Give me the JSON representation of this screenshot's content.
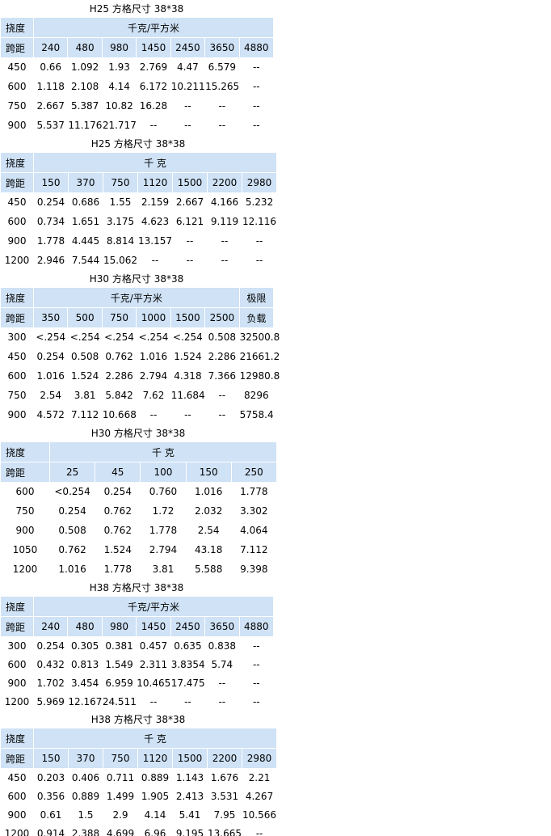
{
  "tables": [
    {
      "title": "H25 方格尺寸 38*38",
      "header1": [
        "挠度",
        "千克/平方米"
      ],
      "header2": [
        "跨距",
        "240",
        "480",
        "980",
        "1450",
        "2450",
        "3650",
        "4880"
      ],
      "rows": [
        [
          "450",
          "0.66",
          "1.092",
          "1.93",
          "2.769",
          "4.47",
          "6.579",
          "--"
        ],
        [
          "600",
          "1.118",
          "2.108",
          "4.14",
          "6.172",
          "10.211",
          "15.265",
          "--"
        ],
        [
          "750",
          "2.667",
          "5.387",
          "10.82",
          "16.28",
          "--",
          "--",
          "--"
        ],
        [
          "900",
          "5.537",
          "11.176",
          "21.717",
          "--",
          "--",
          "--",
          "--"
        ]
      ]
    },
    {
      "title": "H25 方格尺寸 38*38",
      "header1": [
        "挠度",
        "千 克"
      ],
      "header2": [
        "跨距",
        "150",
        "370",
        "750",
        "1120",
        "1500",
        "2200",
        "2980"
      ],
      "rows": [
        [
          "450",
          "0.254",
          "0.686",
          "1.55",
          "2.159",
          "2.667",
          "4.166",
          "5.232"
        ],
        [
          "600",
          "0.734",
          "1.651",
          "3.175",
          "4.623",
          "6.121",
          "9.119",
          "12.116"
        ],
        [
          "900",
          "1.778",
          "4.445",
          "8.814",
          "13.157",
          "--",
          "--",
          "--"
        ],
        [
          "1200",
          "2.946",
          "7.544",
          "15.062",
          "--",
          "--",
          "--",
          "--"
        ]
      ]
    },
    {
      "title": "H30 方格尺寸 38*38",
      "header1": [
        "挠度",
        "千克/平方米",
        "极限"
      ],
      "header2": [
        "跨距",
        "350",
        "500",
        "750",
        "1000",
        "1500",
        "2500",
        "负载"
      ],
      "rows": [
        [
          "300",
          "<.254",
          "<.254",
          "<.254",
          "<.254",
          "<.254",
          "0.508",
          "32500.8"
        ],
        [
          "450",
          "0.254",
          "0.508",
          "0.762",
          "1.016",
          "1.524",
          "2.286",
          "21661.2"
        ],
        [
          "600",
          "1.016",
          "1.524",
          "2.286",
          "2.794",
          "4.318",
          "7.366",
          "12980.8"
        ],
        [
          "750",
          "2.54",
          "3.81",
          "5.842",
          "7.62",
          "11.684",
          "--",
          "8296"
        ],
        [
          "900",
          "4.572",
          "7.112",
          "10.668",
          "--",
          "--",
          "--",
          "5758.4"
        ]
      ]
    },
    {
      "title": "H30 方格尺寸 38*38",
      "header1": [
        "挠度",
        "千 克"
      ],
      "header2": [
        "跨距",
        "25",
        "45",
        "100",
        "150",
        "250"
      ],
      "rows": [
        [
          "600",
          "<0.254",
          "0.254",
          "0.760",
          "1.016",
          "1.778"
        ],
        [
          "750",
          "0.254",
          "0.762",
          "1.72",
          "2.032",
          "3.302"
        ],
        [
          "900",
          "0.508",
          "0.762",
          "1.778",
          "2.54",
          "4.064"
        ],
        [
          "1050",
          "0.762",
          "1.524",
          "2.794",
          "43.18",
          "7.112"
        ],
        [
          "1200",
          "1.016",
          "1.778",
          "3.81",
          "5.588",
          "9.398"
        ]
      ]
    },
    {
      "title": "H38 方格尺寸 38*38",
      "header1": [
        "挠度",
        "千克/平方米"
      ],
      "header2": [
        "跨距",
        "240",
        "480",
        "980",
        "1450",
        "2450",
        "3650",
        "4880"
      ],
      "rows": [
        [
          "300",
          "0.254",
          "0.305",
          "0.381",
          "0.457",
          "0.635",
          "0.838",
          "--"
        ],
        [
          "600",
          "0.432",
          "0.813",
          "1.549",
          "2.311",
          "3.8354",
          "5.74",
          "--"
        ],
        [
          "900",
          "1.702",
          "3.454",
          "6.959",
          "10.465",
          "17.475",
          "--",
          "--"
        ],
        [
          "1200",
          "5.969",
          "12.167",
          "24.511",
          "--",
          "--",
          "--",
          "--"
        ]
      ]
    },
    {
      "title": "H38 方格尺寸 38*38",
      "header1": [
        "挠度",
        "千 克"
      ],
      "header2": [
        "跨距",
        "150",
        "370",
        "750",
        "1120",
        "1500",
        "2200",
        "2980"
      ],
      "rows": [
        [
          "450",
          "0.203",
          "0.406",
          "0.711",
          "0.889",
          "1.143",
          "1.676",
          "2.21"
        ],
        [
          "600",
          "0.356",
          "0.889",
          "1.499",
          "1.905",
          "2.413",
          "3.531",
          "4.267"
        ],
        [
          "900",
          "0.61",
          "1.5",
          "2.9",
          "4.14",
          "5.41",
          "7.95",
          "10.566"
        ],
        [
          "1200",
          "0.914",
          "2.388",
          "4.699",
          "6.96",
          "9.195",
          "13.665",
          "--"
        ]
      ]
    }
  ]
}
